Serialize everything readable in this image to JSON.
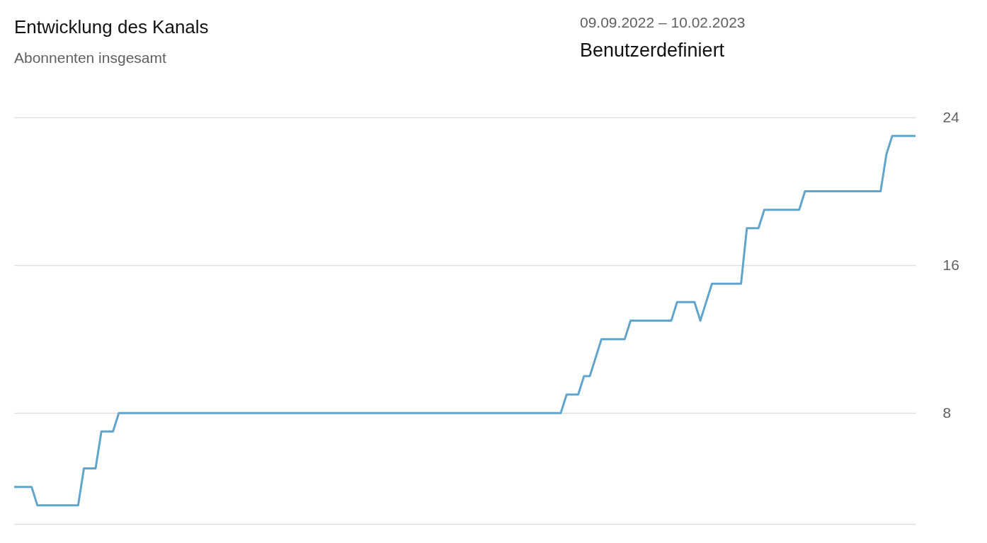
{
  "chart_data": {
    "type": "line",
    "title": "Entwicklung des Kanals",
    "subtitle": "Abonnenten insgesamt",
    "annotations": [
      "09.09.2022 – 10.02.2023",
      "Benutzerdefiniert"
    ],
    "categories": [
      null,
      null,
      null,
      null,
      null,
      null,
      null,
      null,
      null,
      null,
      null,
      null,
      null,
      null,
      null,
      null,
      null,
      null,
      null,
      null,
      null,
      null,
      null,
      null,
      null,
      null,
      null,
      null,
      null,
      null,
      null,
      null,
      null,
      null,
      null,
      null,
      null,
      null,
      null,
      null,
      null,
      null,
      null,
      null,
      null,
      null,
      null,
      null,
      null,
      null,
      null,
      null,
      null,
      null,
      null,
      null,
      null,
      null,
      null,
      null,
      null,
      null,
      null,
      null,
      null,
      null,
      null,
      null,
      null,
      null,
      null,
      null,
      null,
      null,
      null,
      null,
      null,
      null,
      null,
      null,
      null,
      null,
      null,
      null,
      null,
      null,
      null,
      null,
      null,
      null,
      null,
      null,
      null,
      null,
      null,
      null,
      null,
      null,
      null,
      null,
      null,
      null,
      null,
      null,
      null,
      null,
      null,
      null,
      null,
      null,
      null,
      null,
      null,
      null,
      null,
      null,
      null,
      null,
      null,
      null,
      null,
      null,
      null,
      null,
      null,
      null,
      null,
      null,
      null,
      null,
      null,
      null,
      null,
      null,
      null,
      null,
      null,
      null,
      null,
      null,
      null,
      null,
      null,
      null,
      null,
      null,
      null,
      null,
      null,
      null,
      null,
      null,
      null,
      null,
      null,
      null
    ],
    "series": [
      {
        "color": "#62a5cc",
        "values": [
          4,
          4,
          4,
          4,
          3,
          3,
          3,
          3,
          3,
          3,
          3,
          3,
          5,
          5,
          5,
          7,
          7,
          7,
          8,
          8,
          8,
          8,
          8,
          8,
          8,
          8,
          8,
          8,
          8,
          8,
          8,
          8,
          8,
          8,
          8,
          8,
          8,
          8,
          8,
          8,
          8,
          8,
          8,
          8,
          8,
          8,
          8,
          8,
          8,
          8,
          8,
          8,
          8,
          8,
          8,
          8,
          8,
          8,
          8,
          8,
          8,
          8,
          8,
          8,
          8,
          8,
          8,
          8,
          8,
          8,
          8,
          8,
          8,
          8,
          8,
          8,
          8,
          8,
          8,
          8,
          8,
          8,
          8,
          8,
          8,
          8,
          8,
          8,
          8,
          8,
          8,
          8,
          8,
          8,
          8,
          9,
          9,
          9,
          10,
          10,
          11,
          12,
          12,
          12,
          12,
          12,
          13,
          13,
          13,
          13,
          13,
          13,
          13,
          13,
          14,
          14,
          14,
          14,
          13,
          14,
          15,
          15,
          15,
          15,
          15,
          15,
          18,
          18,
          18,
          19,
          19,
          19,
          19,
          19,
          19,
          19,
          20,
          20,
          20,
          20,
          20,
          20,
          20,
          20,
          20,
          20,
          20,
          20,
          20,
          20,
          22,
          23,
          23,
          23,
          23,
          23
        ]
      }
    ],
    "ylim": [
      2,
      24
    ],
    "yticks": [
      8,
      16,
      24
    ],
    "grid": "y",
    "line_style": "solid",
    "marker": "none"
  }
}
